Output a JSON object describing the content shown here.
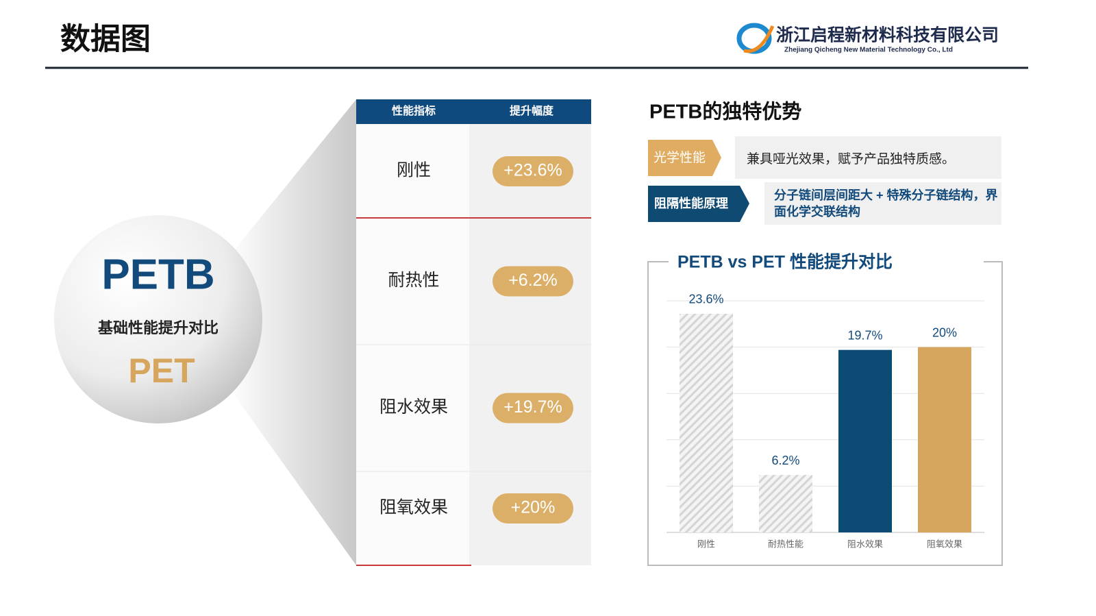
{
  "header": {
    "title": "数据图",
    "company_cn": "浙江启程新材料科技有限公司",
    "company_en": "Zhejiang Qicheng New Material Technology Co., Ltd"
  },
  "diagram": {
    "top": "PETB",
    "middle": "基础性能提升对比",
    "bottom": "PET"
  },
  "table": {
    "headers": [
      "性能指标",
      "提升幅度"
    ],
    "rows": [
      [
        "刚性",
        "+23.6%"
      ],
      [
        "耐热性",
        "+6.2%"
      ],
      [
        "阻水效果",
        "+19.7%"
      ],
      [
        "阻氧效果",
        "+20%"
      ]
    ]
  },
  "advantages": {
    "title": "PETB的独特优势",
    "items": [
      {
        "label": "光学性能",
        "text": "兼具哑光效果，赋予产品独特质感。"
      },
      {
        "label": "阻隔性能原理",
        "text": "分子链间层间距大 + 特殊分子链结构，界面化学交联结构"
      }
    ]
  },
  "chart_data": {
    "type": "bar",
    "title": "PETB vs PET 性能提升对比",
    "categories": [
      "刚性",
      "耐热性能",
      "阻水效果",
      "阻氧效果"
    ],
    "values": [
      23.6,
      6.2,
      19.7,
      20
    ],
    "value_labels": [
      "23.6%",
      "6.2%",
      "19.7%",
      "20%"
    ],
    "colors": [
      "#d4d4d4",
      "#d4d4d4",
      "#0b4a73",
      "#d6a55e"
    ],
    "hatched": [
      true,
      true,
      false,
      false
    ],
    "ylim": [
      0,
      25
    ],
    "yticks": [
      0,
      5,
      10,
      15,
      20,
      25
    ],
    "grid": true
  }
}
